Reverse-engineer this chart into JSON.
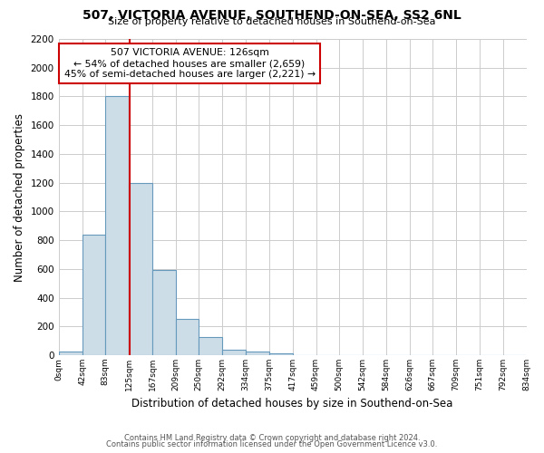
{
  "title": "507, VICTORIA AVENUE, SOUTHEND-ON-SEA, SS2 6NL",
  "subtitle": "Size of property relative to detached houses in Southend-on-Sea",
  "xlabel": "Distribution of detached houses by size in Southend-on-Sea",
  "ylabel": "Number of detached properties",
  "bar_edges": [
    0,
    42,
    83,
    125,
    167,
    209,
    250,
    292,
    334,
    375,
    417,
    459,
    500,
    542,
    584,
    626,
    667,
    709,
    751,
    792,
    834
  ],
  "bar_heights": [
    25,
    840,
    1800,
    1200,
    590,
    255,
    125,
    40,
    25,
    10,
    0,
    0,
    0,
    0,
    0,
    0,
    0,
    0,
    0,
    0
  ],
  "bar_color": "#ccdde8",
  "bar_edge_color": "#6699bb",
  "property_line_x": 126,
  "property_line_color": "#cc0000",
  "annotation_box_edge_color": "#cc0000",
  "annotation_text_line1": "507 VICTORIA AVENUE: 126sqm",
  "annotation_text_line2": "← 54% of detached houses are smaller (2,659)",
  "annotation_text_line3": "45% of semi-detached houses are larger (2,221) →",
  "tick_labels": [
    "0sqm",
    "42sqm",
    "83sqm",
    "125sqm",
    "167sqm",
    "209sqm",
    "250sqm",
    "292sqm",
    "334sqm",
    "375sqm",
    "417sqm",
    "459sqm",
    "500sqm",
    "542sqm",
    "584sqm",
    "626sqm",
    "667sqm",
    "709sqm",
    "751sqm",
    "792sqm",
    "834sqm"
  ],
  "ylim": [
    0,
    2200
  ],
  "yticks": [
    0,
    200,
    400,
    600,
    800,
    1000,
    1200,
    1400,
    1600,
    1800,
    2000,
    2200
  ],
  "footer_line1": "Contains HM Land Registry data © Crown copyright and database right 2024.",
  "footer_line2": "Contains public sector information licensed under the Open Government Licence v3.0.",
  "bg_color": "#ffffff",
  "plot_bg_color": "#ffffff",
  "grid_color": "#cccccc"
}
